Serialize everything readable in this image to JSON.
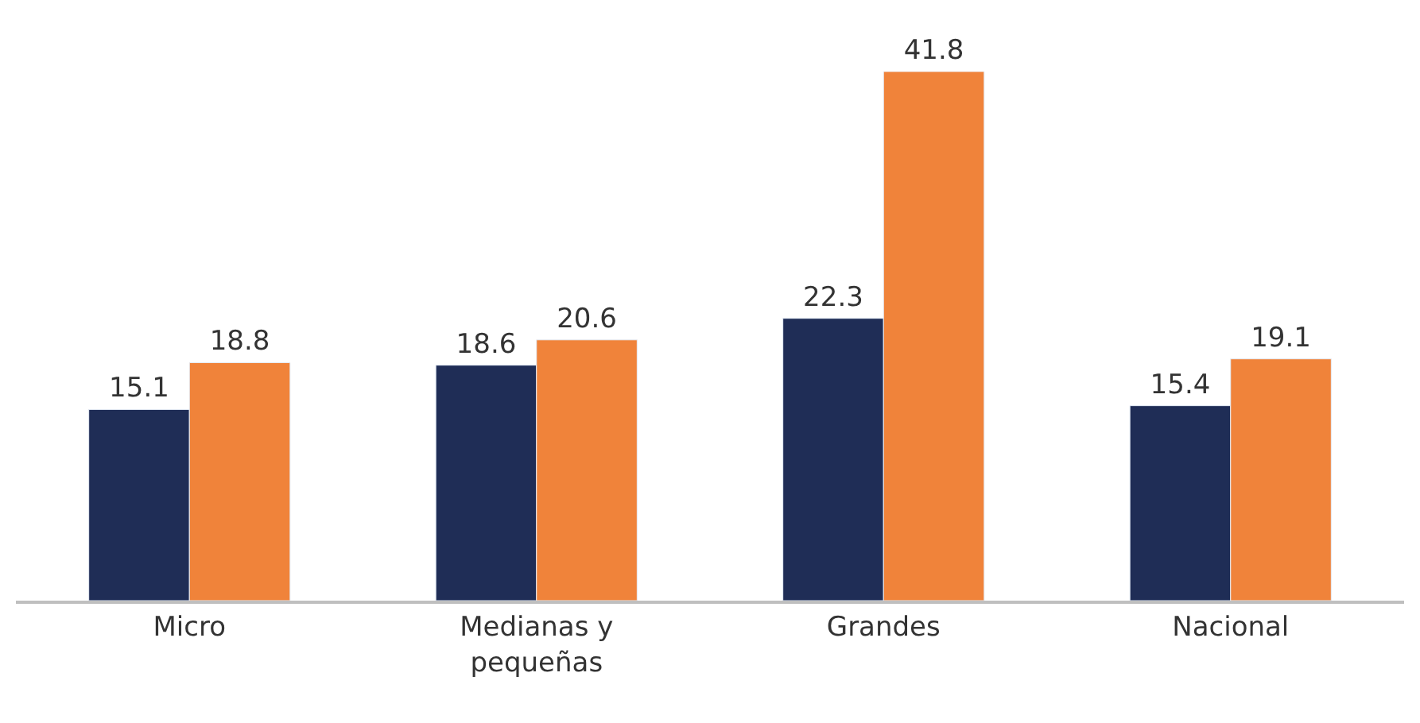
{
  "chart_data": {
    "type": "bar",
    "categories": [
      "Micro",
      "Medianas y\npequeñas",
      "Grandes",
      "Nacional"
    ],
    "series": [
      {
        "color": "#1f2d56",
        "values": [
          15.1,
          18.6,
          22.3,
          15.4
        ]
      },
      {
        "color": "#f0833a",
        "values": [
          18.8,
          20.6,
          41.8,
          19.1
        ]
      }
    ],
    "data_labels": true
  }
}
